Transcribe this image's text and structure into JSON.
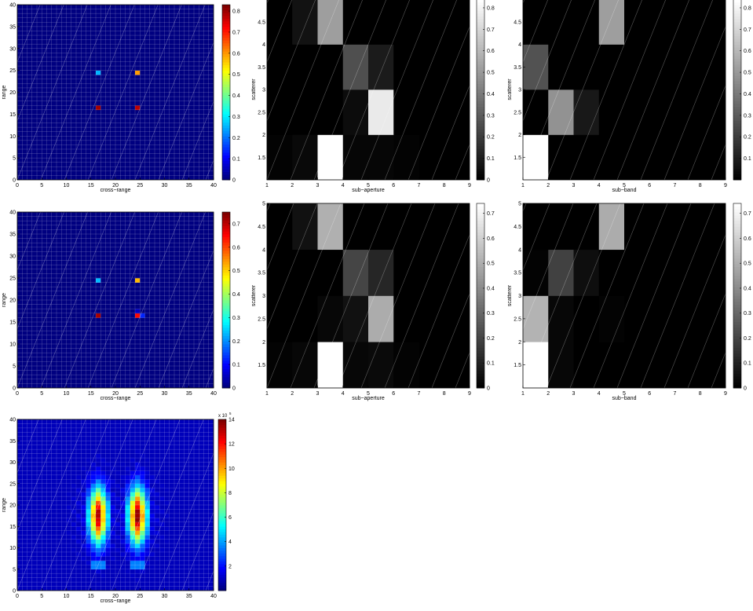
{
  "colors": {
    "jet": [
      "#00008f",
      "#0000ff",
      "#00ffff",
      "#ffff00",
      "#ff0000",
      "#800000"
    ],
    "gray": [
      "#000000",
      "#ffffff"
    ]
  },
  "labels": {
    "cross_range": "cross−range",
    "range": "range",
    "scatterer": "scatterer",
    "sub_aperture": "sub−aperture",
    "sub_band": "sub−band"
  },
  "chart_data": [
    {
      "type": "heatmap",
      "colormap": "jet",
      "xlabel": "cross−range",
      "ylabel": "range",
      "xlim": [
        0,
        40
      ],
      "ylim": [
        0,
        40
      ],
      "xticks": [
        0,
        5,
        10,
        15,
        20,
        25,
        30,
        35,
        40
      ],
      "yticks": [
        0,
        5,
        10,
        15,
        20,
        25,
        30,
        35,
        40
      ],
      "grid": "40x40 cells",
      "background": 0,
      "cells": [
        {
          "x": 16,
          "y": 24,
          "v": 0.25
        },
        {
          "x": 24,
          "y": 24,
          "v": 0.6
        },
        {
          "x": 16,
          "y": 16,
          "v": 0.8
        },
        {
          "x": 24,
          "y": 16,
          "v": 0.78
        }
      ],
      "colorbar": {
        "range": [
          0,
          0.83
        ],
        "ticks": [
          0,
          0.1,
          0.2,
          0.3,
          0.4,
          0.5,
          0.6,
          0.7,
          0.8
        ]
      }
    },
    {
      "type": "heatmap",
      "colormap": "gray",
      "xlabel": "sub−aperture",
      "ylabel": "scatterer",
      "xlim": [
        1,
        9
      ],
      "ylim": [
        1,
        5
      ],
      "xticks": [
        1,
        2,
        3,
        4,
        5,
        6,
        7,
        8,
        9
      ],
      "yticks": [
        1.5,
        2,
        2.5,
        3,
        3.5,
        4,
        4.5
      ],
      "rows": [
        [
          0.01,
          0.03,
          0.84,
          0.02,
          0.02,
          0.01,
          0.0,
          0.0
        ],
        [
          0.0,
          0.0,
          0.0,
          0.04,
          0.77,
          0.0,
          0.0,
          0.0
        ],
        [
          0.0,
          0.0,
          0.0,
          0.26,
          0.09,
          0.0,
          0.0,
          0.0
        ],
        [
          0.0,
          0.06,
          0.52,
          0.0,
          0.0,
          0.0,
          0.0,
          0.0
        ]
      ],
      "colorbar": {
        "range": [
          0,
          0.84
        ],
        "ticks": [
          0,
          0.1,
          0.2,
          0.3,
          0.4,
          0.5,
          0.6,
          0.7,
          0.8
        ]
      }
    },
    {
      "type": "heatmap",
      "colormap": "gray",
      "xlabel": "sub−band",
      "ylabel": "scatterer",
      "xlim": [
        1,
        9
      ],
      "ylim": [
        1,
        5
      ],
      "xticks": [
        1,
        2,
        3,
        4,
        5,
        6,
        7,
        8,
        9
      ],
      "yticks": [
        1.5,
        2,
        2.5,
        3,
        3.5,
        4,
        4.5
      ],
      "rows": [
        [
          0.84,
          0.0,
          0.0,
          0.0,
          0.0,
          0.0,
          0.0,
          0.0
        ],
        [
          0.0,
          0.48,
          0.08,
          0.0,
          0.0,
          0.0,
          0.0,
          0.0
        ],
        [
          0.27,
          0.0,
          0.0,
          0.0,
          0.0,
          0.0,
          0.0,
          0.0
        ],
        [
          0.0,
          0.0,
          0.0,
          0.52,
          0.0,
          0.0,
          0.0,
          0.0
        ]
      ],
      "colorbar": {
        "range": [
          0,
          0.84
        ],
        "ticks": [
          0.1,
          0.2,
          0.3,
          0.4,
          0.5,
          0.6,
          0.7,
          0.8
        ]
      }
    },
    {
      "type": "heatmap",
      "colormap": "jet",
      "xlabel": "cross−range",
      "ylabel": "range",
      "xlim": [
        0,
        40
      ],
      "ylim": [
        0,
        40
      ],
      "xticks": [
        0,
        5,
        10,
        15,
        20,
        25,
        30,
        35,
        40
      ],
      "yticks": [
        0,
        5,
        10,
        15,
        20,
        25,
        30,
        35,
        40
      ],
      "grid": "40x40 cells",
      "background": 0,
      "cells": [
        {
          "x": 16,
          "y": 24,
          "v": 0.23
        },
        {
          "x": 24,
          "y": 24,
          "v": 0.52
        },
        {
          "x": 16,
          "y": 16,
          "v": 0.72
        },
        {
          "x": 24,
          "y": 16,
          "v": 0.65
        },
        {
          "x": 25,
          "y": 16,
          "v": 0.12
        },
        {
          "x": 24,
          "y": 17,
          "v": 0.05
        }
      ],
      "colorbar": {
        "range": [
          0,
          0.75
        ],
        "ticks": [
          0,
          0.1,
          0.2,
          0.3,
          0.4,
          0.5,
          0.6,
          0.7
        ]
      }
    },
    {
      "type": "heatmap",
      "colormap": "gray",
      "xlabel": "sub−aperture",
      "ylabel": "scatterer",
      "xlim": [
        1,
        9
      ],
      "ylim": [
        1,
        5
      ],
      "xticks": [
        1,
        2,
        3,
        4,
        5,
        6,
        7,
        8,
        9
      ],
      "yticks": [
        1.5,
        2,
        2.5,
        3,
        3.5,
        4,
        4.5,
        5
      ],
      "rows": [
        [
          0.01,
          0.02,
          0.74,
          0.02,
          0.03,
          0.01,
          0.0,
          0.0
        ],
        [
          0.0,
          0.0,
          0.02,
          0.05,
          0.5,
          0.0,
          0.0,
          0.0
        ],
        [
          0.0,
          0.0,
          0.0,
          0.2,
          0.11,
          0.0,
          0.0,
          0.0
        ],
        [
          0.0,
          0.05,
          0.51,
          0.0,
          0.0,
          0.0,
          0.0,
          0.0
        ]
      ],
      "colorbar": {
        "range": [
          0,
          0.74
        ],
        "ticks": [
          0,
          0.1,
          0.2,
          0.3,
          0.4,
          0.5,
          0.6,
          0.7
        ]
      }
    },
    {
      "type": "heatmap",
      "colormap": "gray",
      "xlabel": "sub−band",
      "ylabel": "scatterer",
      "xlim": [
        1,
        9
      ],
      "ylim": [
        1,
        5
      ],
      "xticks": [
        1,
        2,
        3,
        4,
        5,
        6,
        7,
        8,
        9
      ],
      "yticks": [
        1.5,
        2,
        2.5,
        3,
        3.5,
        4,
        4.5,
        5
      ],
      "rows": [
        [
          0.74,
          0.02,
          0.0,
          0.0,
          0.0,
          0.0,
          0.0,
          0.0
        ],
        [
          0.52,
          0.02,
          0.0,
          0.01,
          0.0,
          0.0,
          0.0,
          0.0
        ],
        [
          0.01,
          0.19,
          0.04,
          0.0,
          0.0,
          0.0,
          0.0,
          0.0
        ],
        [
          0.0,
          0.0,
          0.0,
          0.5,
          0.0,
          0.0,
          0.0,
          0.0
        ]
      ],
      "colorbar": {
        "range": [
          0,
          0.74
        ],
        "ticks": [
          0,
          0.1,
          0.2,
          0.3,
          0.4,
          0.5,
          0.6,
          0.7
        ]
      }
    },
    {
      "type": "heatmap",
      "colormap": "jet",
      "xlabel": "cross−range",
      "ylabel": "range",
      "xlim": [
        0,
        40
      ],
      "ylim": [
        0,
        40
      ],
      "xticks": [
        0,
        5,
        10,
        15,
        20,
        25,
        30,
        35,
        40
      ],
      "yticks": [
        0,
        5,
        10,
        15,
        20,
        25,
        30,
        35,
        40
      ],
      "grid": "40x40 cells",
      "background": 0.8,
      "columns": [
        {
          "x": 16,
          "peak": 13,
          "center": 17,
          "spread": 6
        },
        {
          "x": 24,
          "peak": 13.5,
          "center": 17,
          "spread": 6
        }
      ],
      "colorbar": {
        "range": [
          0,
          14
        ],
        "ticks": [
          2,
          4,
          6,
          8,
          10,
          12,
          14
        ],
        "exponent_label": "x 10",
        "exponent": "5"
      }
    }
  ]
}
